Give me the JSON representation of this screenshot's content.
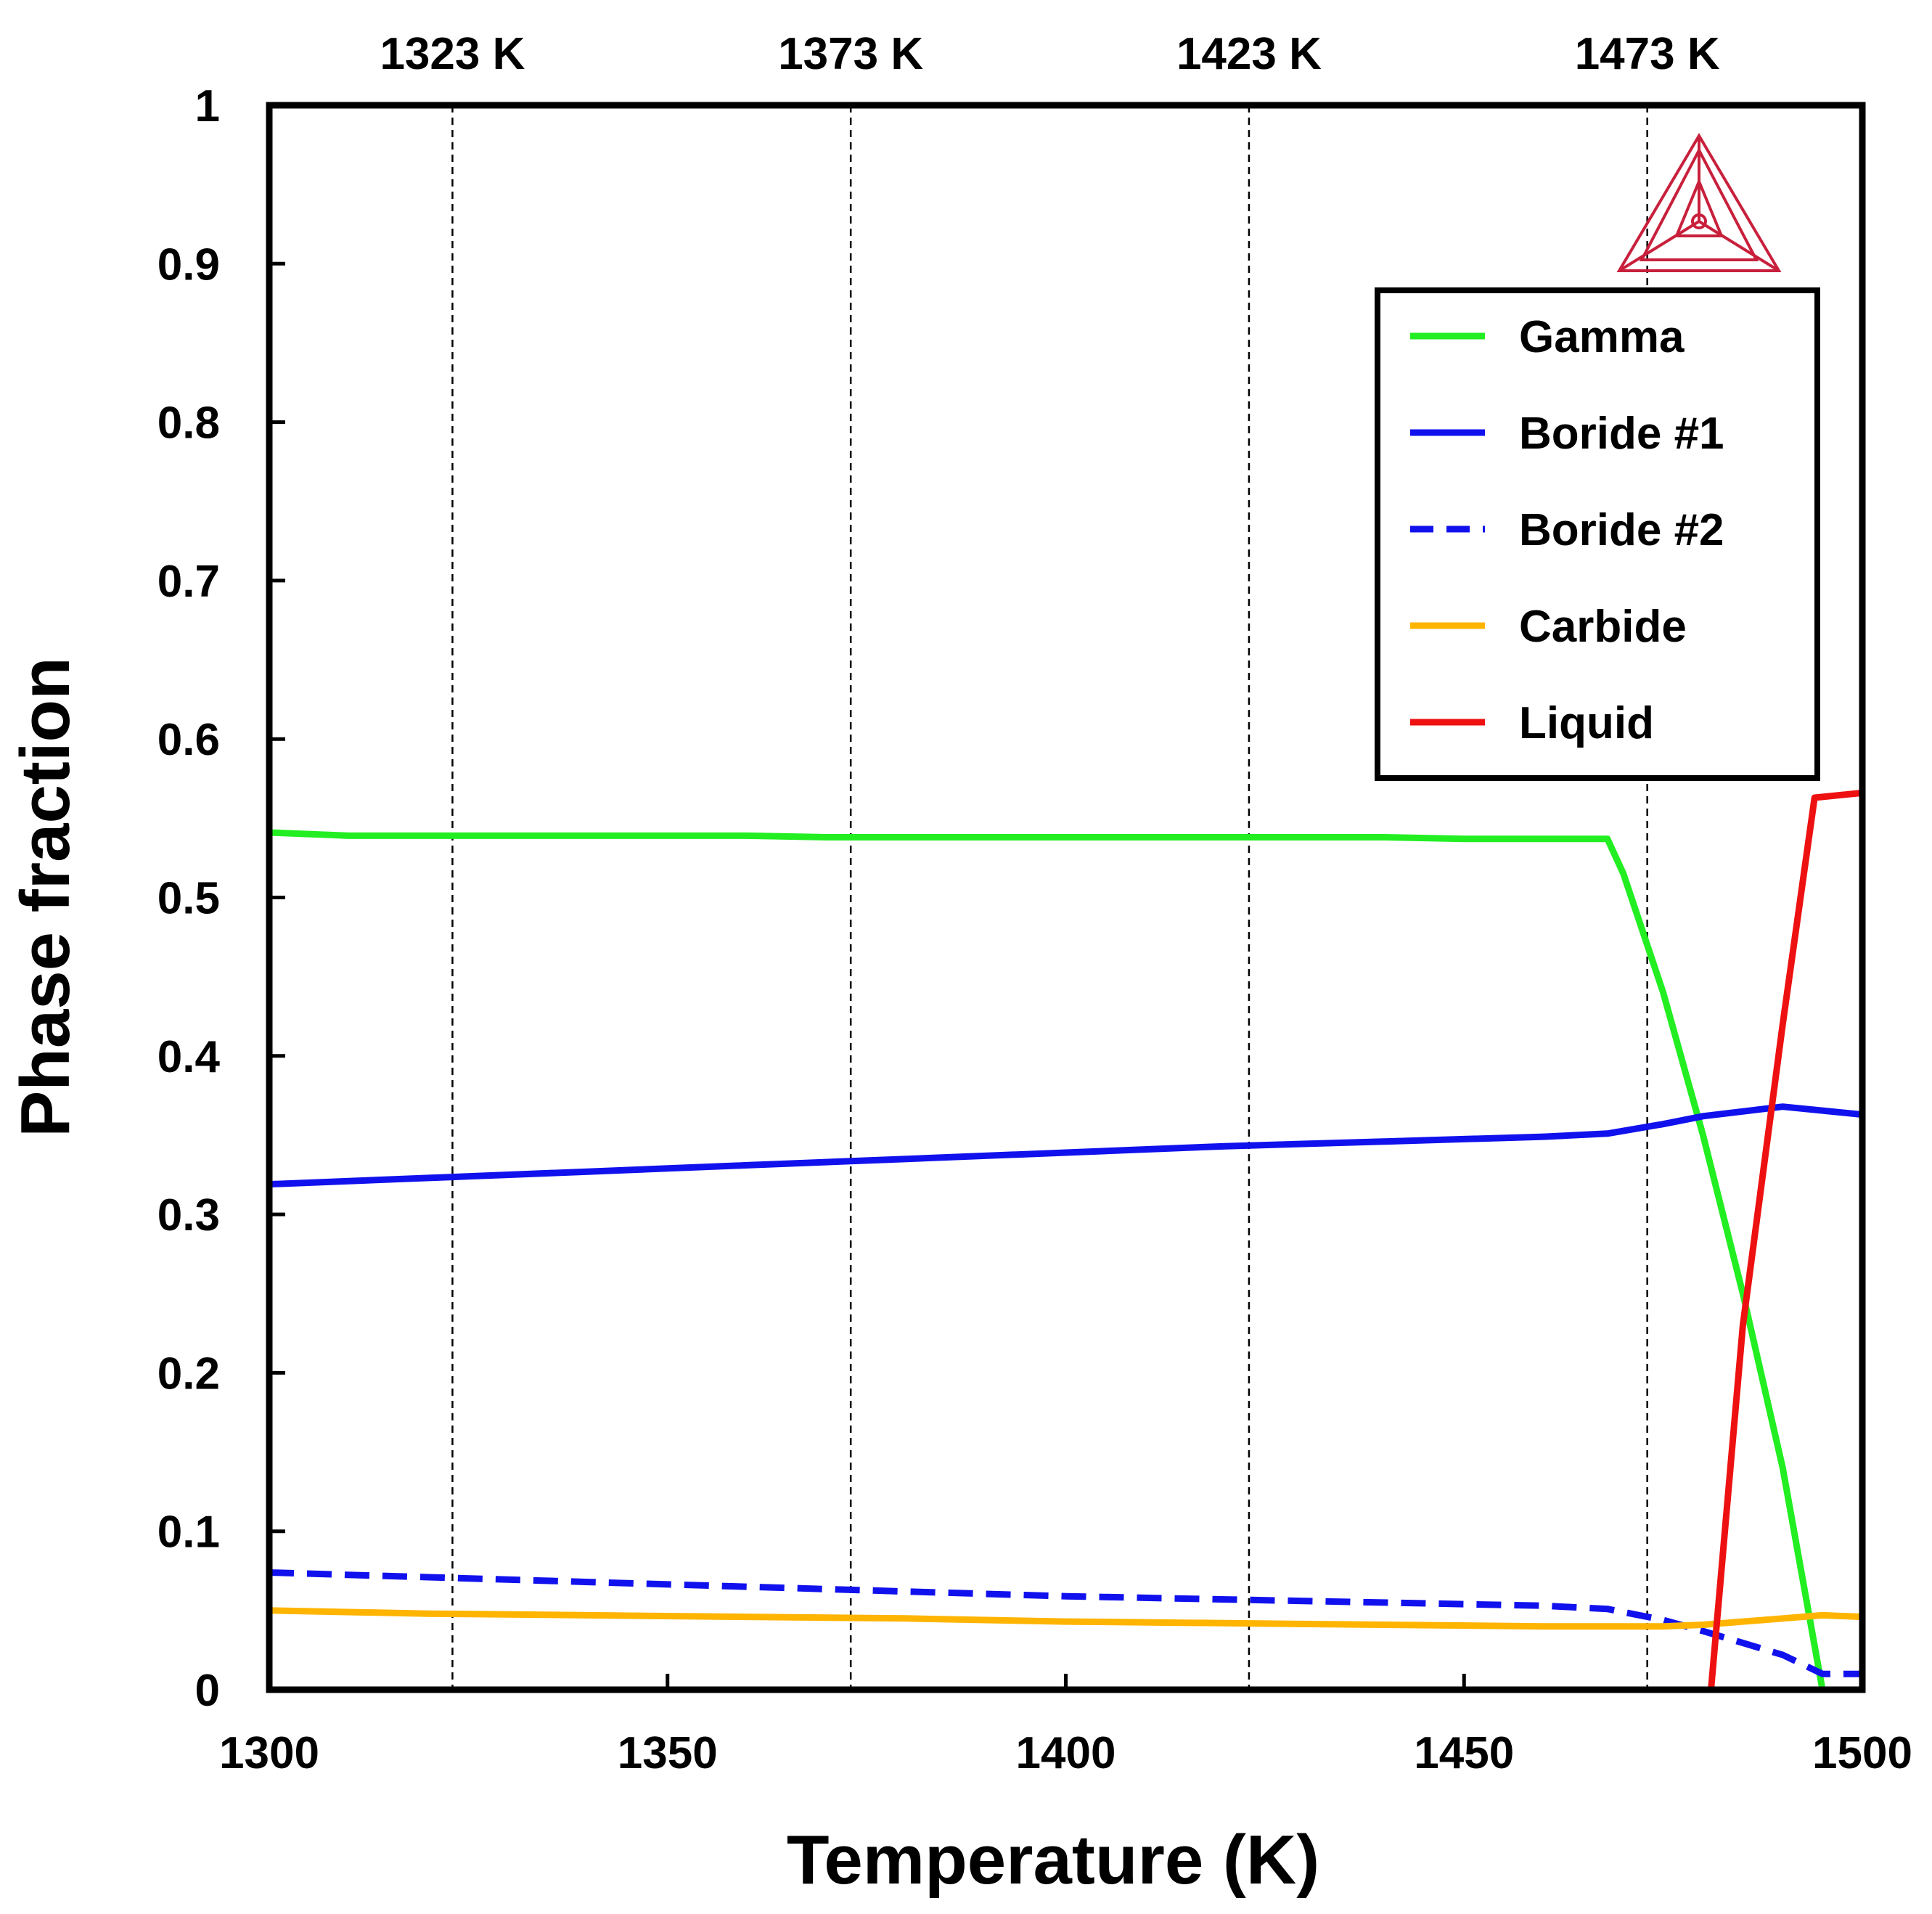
{
  "chart_data": {
    "type": "line",
    "xlabel": "Temperature (K)",
    "ylabel": "Phase fraction",
    "xlim": [
      1300,
      1500
    ],
    "ylim": [
      0,
      1
    ],
    "x_ticks": [
      1300,
      1350,
      1400,
      1450,
      1500
    ],
    "y_ticks": [
      0,
      0.1,
      0.2,
      0.3,
      0.4,
      0.5,
      0.6,
      0.7,
      0.8,
      0.9,
      1
    ],
    "x_tick_labels": [
      "1300",
      "1350",
      "1400",
      "1450",
      "1500"
    ],
    "y_tick_labels": [
      "0",
      "0.1",
      "0.2",
      "0.3",
      "0.4",
      "0.5",
      "0.6",
      "0.7",
      "0.8",
      "0.9",
      "1"
    ],
    "reference_lines": [
      {
        "x": 1323,
        "label": "1323 K"
      },
      {
        "x": 1373,
        "label": "1373 K"
      },
      {
        "x": 1423,
        "label": "1423 K"
      },
      {
        "x": 1473,
        "label": "1473 K"
      }
    ],
    "legend_position": "top-right",
    "series": [
      {
        "name": "Gamma",
        "color": "#22ee22",
        "dash": "solid",
        "x": [
          1300,
          1310,
          1320,
          1340,
          1360,
          1370,
          1380,
          1400,
          1420,
          1440,
          1450,
          1460,
          1468,
          1470,
          1475,
          1480,
          1485,
          1490,
          1495
        ],
        "y": [
          0.541,
          0.539,
          0.539,
          0.539,
          0.539,
          0.538,
          0.538,
          0.538,
          0.538,
          0.538,
          0.537,
          0.537,
          0.537,
          0.515,
          0.44,
          0.35,
          0.25,
          0.14,
          0.0
        ]
      },
      {
        "name": "Boride #1",
        "color": "#1111ee",
        "dash": "solid",
        "x": [
          1300,
          1320,
          1340,
          1360,
          1380,
          1400,
          1420,
          1440,
          1460,
          1468,
          1475,
          1480,
          1490,
          1500
        ],
        "y": [
          0.319,
          0.323,
          0.327,
          0.331,
          0.335,
          0.339,
          0.343,
          0.346,
          0.349,
          0.351,
          0.357,
          0.362,
          0.368,
          0.363
        ]
      },
      {
        "name": "Boride #2",
        "color": "#1111ee",
        "dash": "dashed",
        "x": [
          1300,
          1320,
          1340,
          1360,
          1380,
          1400,
          1420,
          1440,
          1460,
          1468,
          1475,
          1480,
          1490,
          1495,
          1500
        ],
        "y": [
          0.074,
          0.071,
          0.068,
          0.065,
          0.062,
          0.059,
          0.057,
          0.055,
          0.053,
          0.051,
          0.044,
          0.037,
          0.022,
          0.01,
          0.01
        ]
      },
      {
        "name": "Carbide",
        "color": "#ffb400",
        "dash": "solid",
        "x": [
          1300,
          1320,
          1340,
          1360,
          1380,
          1400,
          1420,
          1440,
          1460,
          1475,
          1480,
          1490,
          1495,
          1500
        ],
        "y": [
          0.05,
          0.048,
          0.047,
          0.046,
          0.045,
          0.043,
          0.042,
          0.041,
          0.04,
          0.04,
          0.041,
          0.045,
          0.047,
          0.046
        ]
      },
      {
        "name": "Liquid",
        "color": "#ee1111",
        "dash": "solid",
        "x": [
          1481,
          1485,
          1490,
          1494,
          1500
        ],
        "y": [
          0.0,
          0.23,
          0.42,
          0.563,
          0.566
        ]
      }
    ]
  },
  "legend_items": [
    {
      "label": "Gamma",
      "color": "#22ee22",
      "dash": "solid"
    },
    {
      "label": "Boride #1",
      "color": "#1111ee",
      "dash": "solid"
    },
    {
      "label": "Boride #2",
      "color": "#1111ee",
      "dash": "dashed"
    },
    {
      "label": "Carbide",
      "color": "#ffb400",
      "dash": "solid"
    },
    {
      "label": "Liquid",
      "color": "#ee1111",
      "dash": "solid"
    }
  ],
  "logo": {
    "name": "thermo-calc-triangle-logo",
    "color": "#c8203c"
  }
}
